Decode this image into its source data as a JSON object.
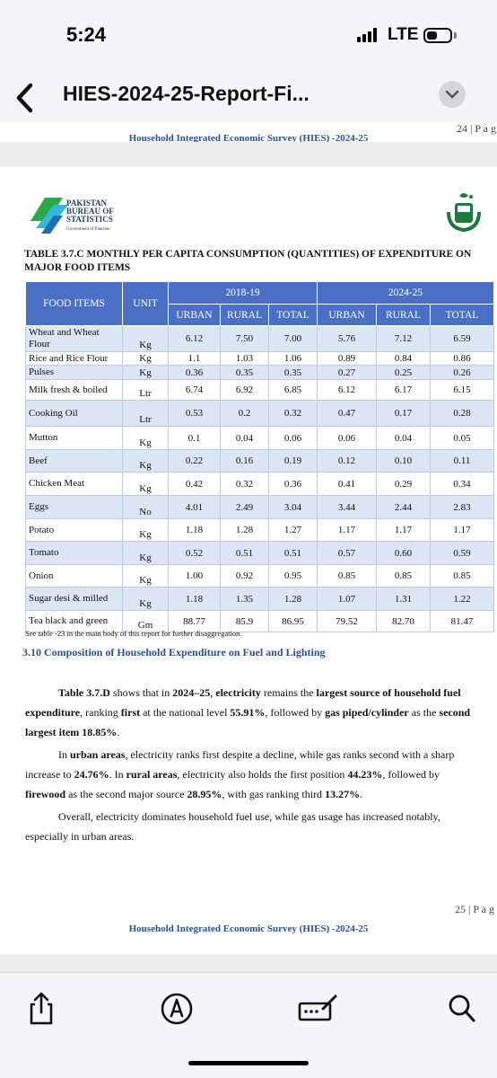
{
  "status_bar": {
    "time": "5:24",
    "network": "LTE"
  },
  "nav": {
    "title": "HIES-2024-25-Report-Fi..."
  },
  "page_top": {
    "page_label": "24 | P a g",
    "footer": "Household Integrated Economic Survey (HIES) -2024-25"
  },
  "header": {
    "logo_line1": "PAKISTAN",
    "logo_line2": "BUREAU OF",
    "logo_line3": "STATISTICS",
    "logo_sub": "Government of Pakistan"
  },
  "table": {
    "title_line1": "TABLE 3.7.C MONTHLY PER CAPITA CONSUMPTION (QUANTITIES) OF EXPENDITURE ON",
    "title_line2": "MAJOR FOOD ITEMS",
    "col_item": "FOOD ITEMS",
    "col_unit": "UNIT",
    "year1": "2018-19",
    "year2": "2024-25",
    "sub": [
      "URBAN",
      "RURAL",
      "TOTAL",
      "URBAN",
      "RURAL",
      "TOTAL"
    ],
    "rows": [
      {
        "item": "Wheat and Wheat Flour",
        "unit": "Kg",
        "v": [
          "6.12",
          "7.50",
          "7.00",
          "5.76",
          "7.12",
          "6.59"
        ]
      },
      {
        "item": "Rice and Rice Flour",
        "unit": "Kg",
        "v": [
          "1.1",
          "1.03",
          "1.06",
          "0.89",
          "0.84",
          "0.86"
        ]
      },
      {
        "item": "Pulses",
        "unit": "Kg",
        "v": [
          "0.36",
          "0.35",
          "0.35",
          "0.27",
          "0.25",
          "0.26"
        ]
      },
      {
        "item": "Milk fresh & boiled",
        "unit": "Ltr",
        "v": [
          "6.74",
          "6.92",
          "6.85",
          "6.12",
          "6.17",
          "6.15"
        ]
      },
      {
        "item": "Cooking Oil",
        "unit": "Ltr",
        "v": [
          "0.53",
          "0.2",
          "0.32",
          "0.47",
          "0.17",
          "0.28"
        ]
      },
      {
        "item": "Mutton",
        "unit": "Kg",
        "v": [
          "0.1",
          "0.04",
          "0.06",
          "0.06",
          "0.04",
          "0.05"
        ]
      },
      {
        "item": "Beef",
        "unit": "Kg",
        "v": [
          "0.22",
          "0.16",
          "0.19",
          "0.12",
          "0.10",
          "0.11"
        ]
      },
      {
        "item": "Chicken Meat",
        "unit": "Kg",
        "v": [
          "0.42",
          "0.32",
          "0.36",
          "0.41",
          "0.29",
          "0.34"
        ]
      },
      {
        "item": "Eggs",
        "unit": "No",
        "v": [
          "4.01",
          "2.49",
          "3.04",
          "3.44",
          "2.44",
          "2.83"
        ]
      },
      {
        "item": "Potato",
        "unit": "Kg",
        "v": [
          "1.18",
          "1.28",
          "1.27",
          "1.17",
          "1.17",
          "1.17"
        ]
      },
      {
        "item": "Tomato",
        "unit": "Kg",
        "v": [
          "0.52",
          "0.51",
          "0.51",
          "0.57",
          "0.60",
          "0.59"
        ]
      },
      {
        "item": "Onion",
        "unit": "Kg",
        "v": [
          "1.00",
          "0.92",
          "0.95",
          "0.85",
          "0.85",
          "0.85"
        ]
      },
      {
        "item": "Sugar desi & milled",
        "unit": "Kg",
        "v": [
          "1.18",
          "1.35",
          "1.28",
          "1.07",
          "1.31",
          "1.22"
        ]
      },
      {
        "item": "Tea black and green",
        "unit": "Gm",
        "v": [
          "88.77",
          "85.9",
          "86.95",
          "79.52",
          "82.70",
          "81.47"
        ]
      }
    ],
    "note": "See table -23 in the main body of this report for further disaggregation."
  },
  "section": {
    "heading": "3.10 Composition of Household Expenditure on Fuel and Lighting",
    "p1": [
      [
        {
          "t": "Table 3.7.D",
          "b": true
        },
        {
          "t": " shows that in "
        },
        {
          "t": "2024–25",
          "b": true
        },
        {
          "t": ", "
        },
        {
          "t": "electricity",
          "b": true
        },
        {
          "t": " remains the "
        },
        {
          "t": "largest source of household fuel",
          "b": true
        }
      ],
      [
        {
          "t": "expenditure",
          "b": true
        },
        {
          "t": ", ranking "
        },
        {
          "t": "first",
          "b": true
        },
        {
          "t": " at the national level "
        },
        {
          "t": "55.91%",
          "b": true
        },
        {
          "t": ", followed by "
        },
        {
          "t": "gas piped/cylinder",
          "b": true
        },
        {
          "t": " as the "
        },
        {
          "t": "second",
          "b": true
        }
      ],
      [
        {
          "t": "largest item 18.85%",
          "b": true
        },
        {
          "t": "."
        }
      ]
    ],
    "p2": [
      [
        {
          "t": "In "
        },
        {
          "t": "urban areas",
          "b": true
        },
        {
          "t": ", electricity ranks first despite a decline, while gas ranks second with a sharp"
        }
      ],
      [
        {
          "t": "increase to "
        },
        {
          "t": "24.76%",
          "b": true
        },
        {
          "t": ". In "
        },
        {
          "t": "rural areas",
          "b": true
        },
        {
          "t": ", electricity also holds the first position "
        },
        {
          "t": "44.23%",
          "b": true
        },
        {
          "t": ", followed by"
        }
      ],
      [
        {
          "t": "firewood",
          "b": true
        },
        {
          "t": " as the second major source "
        },
        {
          "t": "28.95%",
          "b": true
        },
        {
          "t": ", with gas ranking third "
        },
        {
          "t": "13.27%",
          "b": true
        },
        {
          "t": "."
        }
      ]
    ],
    "p3": [
      [
        {
          "t": "Overall, electricity dominates household fuel use, while gas usage has increased notably,"
        }
      ],
      [
        {
          "t": "especially in urban areas."
        }
      ]
    ]
  },
  "page_bottom": {
    "page_label": "25 | P a g",
    "footer": "Household Integrated Economic Survey (HIES) -2024-25"
  },
  "toolbar": {
    "icons": [
      "share-icon",
      "markup-icon",
      "annotate-icon",
      "search-icon"
    ]
  }
}
